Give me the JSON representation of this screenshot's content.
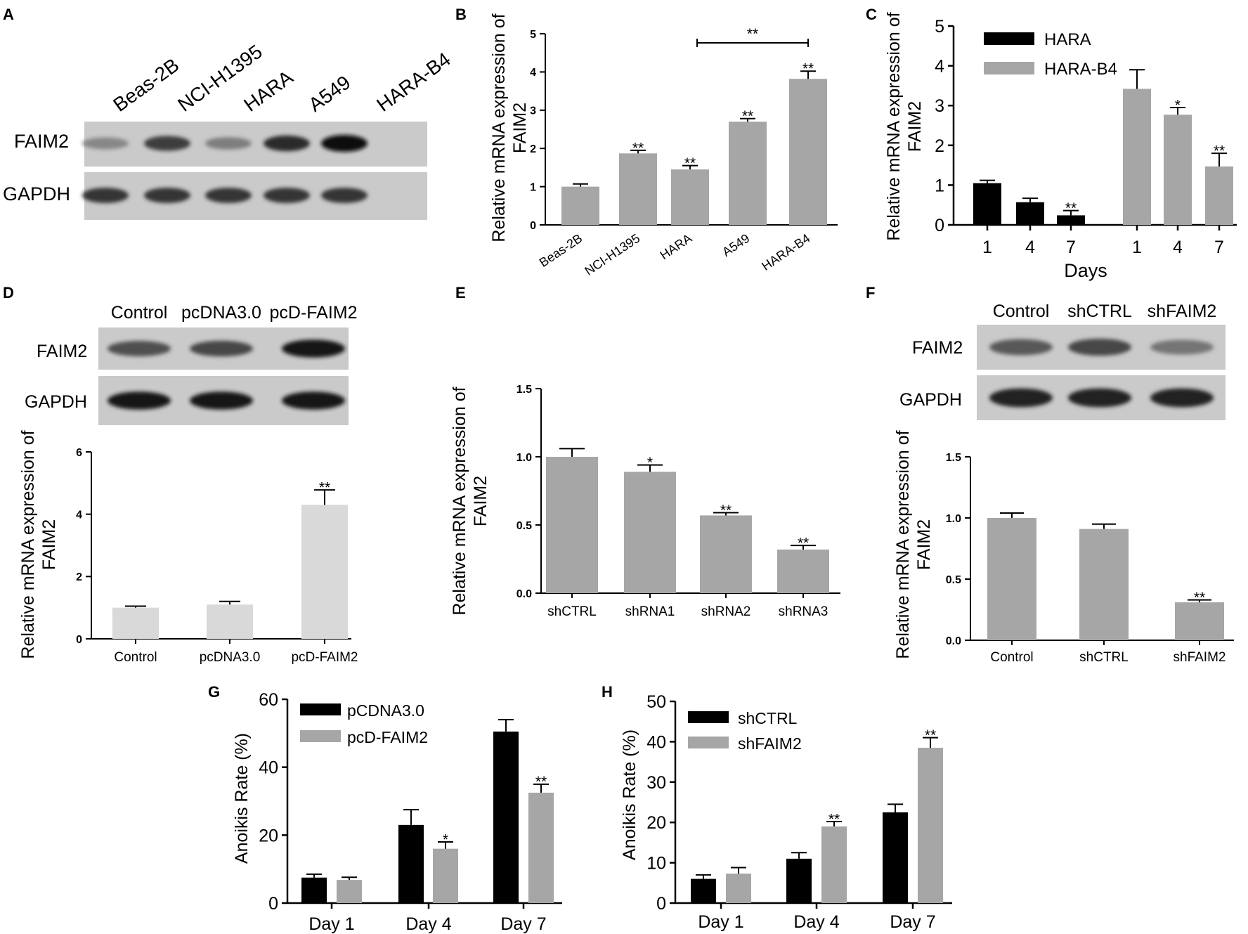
{
  "panel_letters": [
    "A",
    "B",
    "C",
    "D",
    "E",
    "F",
    "G",
    "H"
  ],
  "blots": {
    "A": {
      "lanes": [
        "Beas-2B",
        "NCI-H1395",
        "HARA",
        "A549",
        "HARA-B4"
      ],
      "rows": [
        "FAIM2",
        "GAPDH"
      ],
      "band_intensity": {
        "FAIM2": [
          0.35,
          0.75,
          0.4,
          0.85,
          1.0
        ],
        "GAPDH": [
          0.8,
          0.8,
          0.8,
          0.8,
          0.8
        ]
      }
    },
    "D": {
      "lanes": [
        "Control",
        "pcDNA3.0",
        "pcD-FAIM2"
      ],
      "rows": [
        "FAIM2",
        "GAPDH"
      ],
      "band_intensity": {
        "FAIM2": [
          0.65,
          0.7,
          0.95
        ],
        "GAPDH": [
          0.95,
          0.95,
          0.95
        ]
      }
    },
    "F": {
      "lanes": [
        "Control",
        "shCTRL",
        "shFAIM2"
      ],
      "rows": [
        "FAIM2",
        "GAPDH"
      ],
      "band_intensity": {
        "FAIM2": [
          0.6,
          0.7,
          0.45
        ],
        "GAPDH": [
          0.9,
          0.9,
          0.9
        ]
      }
    }
  },
  "chart_data": [
    {
      "panel": "B",
      "type": "bar",
      "ylabel": "Relative mRNA expression of FAIM2",
      "categories": [
        "Beas-2B",
        "NCI-H1395",
        "HARA",
        "A549",
        "HARA-B4"
      ],
      "values": [
        1.0,
        1.87,
        1.45,
        2.7,
        3.82
      ],
      "errors": [
        0.07,
        0.08,
        0.1,
        0.08,
        0.2
      ],
      "annotations": [
        "",
        "**",
        "**",
        "**",
        "**"
      ],
      "bracket": {
        "from": "HARA",
        "to": "HARA-B4",
        "label": "**"
      },
      "ylim": [
        0,
        5
      ],
      "yticks": [
        0,
        1,
        2,
        3,
        4,
        5
      ],
      "color": "#a6a6a6"
    },
    {
      "panel": "C",
      "type": "bar",
      "ylabel": "Relative mRNA expression of FAIM2",
      "xlabel": "Days",
      "categories": [
        "1",
        "4",
        "7"
      ],
      "series": [
        {
          "name": "HARA",
          "values": [
            1.05,
            0.57,
            0.24
          ],
          "errors": [
            0.07,
            0.1,
            0.12
          ],
          "annotations": [
            "",
            "",
            "**"
          ],
          "color": "#000000"
        },
        {
          "name": "HARA-B4",
          "values": [
            3.42,
            2.77,
            1.47
          ],
          "errors": [
            0.48,
            0.18,
            0.33
          ],
          "annotations": [
            "",
            "*",
            "**"
          ],
          "color": "#a6a6a6"
        }
      ],
      "ylim": [
        0,
        5
      ],
      "yticks": [
        0,
        1,
        2,
        3,
        4,
        5
      ]
    },
    {
      "panel": "D",
      "type": "bar",
      "ylabel": "Relative mRNA expression of FAIM2",
      "categories": [
        "Control",
        "pcDNA3.0",
        "pcD-FAIM2"
      ],
      "values": [
        1.0,
        1.1,
        4.3
      ],
      "errors": [
        0.05,
        0.1,
        0.48
      ],
      "annotations": [
        "",
        "",
        "**"
      ],
      "ylim": [
        0,
        6
      ],
      "yticks": [
        0,
        2,
        4,
        6
      ],
      "color": "#d9d9d9"
    },
    {
      "panel": "E",
      "type": "bar",
      "ylabel": "Relative mRNA expression of FAIM2",
      "categories": [
        "shCTRL",
        "shRNA1",
        "shRNA2",
        "shRNA3"
      ],
      "values": [
        1.0,
        0.89,
        0.57,
        0.32
      ],
      "errors": [
        0.06,
        0.05,
        0.02,
        0.03
      ],
      "annotations": [
        "",
        "*",
        "**",
        "**"
      ],
      "ylim": [
        0,
        1.5
      ],
      "yticks": [
        "0.0",
        "0.5",
        "1.0",
        "1.5"
      ],
      "color": "#a6a6a6"
    },
    {
      "panel": "F",
      "type": "bar",
      "ylabel": "Relative mRNA expression of FAIM2",
      "categories": [
        "Control",
        "shCTRL",
        "shFAIM2"
      ],
      "values": [
        1.0,
        0.91,
        0.31
      ],
      "errors": [
        0.04,
        0.04,
        0.02
      ],
      "annotations": [
        "",
        "",
        "**"
      ],
      "ylim": [
        0,
        1.5
      ],
      "yticks": [
        "0.0",
        "0.5",
        "1.0",
        "1.5"
      ],
      "color": "#a6a6a6"
    },
    {
      "panel": "G",
      "type": "bar",
      "ylabel": "Anoikis Rate (%)",
      "categories": [
        "Day 1",
        "Day 4",
        "Day 7"
      ],
      "series": [
        {
          "name": "pCDNA3.0",
          "values": [
            7.5,
            23.0,
            50.5
          ],
          "errors": [
            1.0,
            4.5,
            3.5
          ],
          "annotations": [
            "",
            "",
            ""
          ],
          "color": "#000000"
        },
        {
          "name": "pcD-FAIM2",
          "values": [
            6.8,
            16.0,
            32.5
          ],
          "errors": [
            0.8,
            2.0,
            2.5
          ],
          "annotations": [
            "",
            "*",
            "**"
          ],
          "color": "#a6a6a6"
        }
      ],
      "ylim": [
        0,
        60
      ],
      "yticks": [
        0,
        20,
        40,
        60
      ]
    },
    {
      "panel": "H",
      "type": "bar",
      "ylabel": "Anoikis Rate (%)",
      "categories": [
        "Day 1",
        "Day 4",
        "Day 7"
      ],
      "series": [
        {
          "name": "shCTRL",
          "values": [
            6.0,
            11.0,
            22.5
          ],
          "errors": [
            1.0,
            1.5,
            2.0
          ],
          "annotations": [
            "",
            "",
            ""
          ],
          "color": "#000000"
        },
        {
          "name": "shFAIM2",
          "values": [
            7.3,
            19.0,
            38.5
          ],
          "errors": [
            1.5,
            1.2,
            2.5
          ],
          "annotations": [
            "",
            "**",
            "**"
          ],
          "color": "#a6a6a6"
        }
      ],
      "ylim": [
        0,
        50
      ],
      "yticks": [
        0,
        10,
        20,
        30,
        40,
        50
      ]
    }
  ]
}
